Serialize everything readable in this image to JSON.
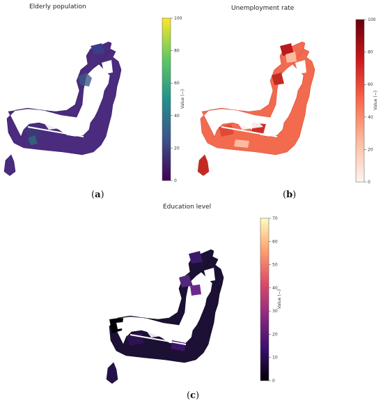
{
  "panels": [
    {
      "id": "a",
      "title": "Elderly population",
      "caption_letter": "a",
      "colorbar": {
        "label": "Value (−)",
        "ticks": [
          "0",
          "20",
          "40",
          "60",
          "80",
          "100"
        ],
        "colormap": "viridis",
        "stops": [
          "#440154",
          "#3b528b",
          "#21918c",
          "#5ec962",
          "#fde725"
        ]
      }
    },
    {
      "id": "b",
      "title": "Unemployment rate",
      "caption_letter": "b",
      "colorbar": {
        "label": "Value (−)",
        "ticks": [
          "0",
          "20",
          "40",
          "60",
          "80",
          "100"
        ],
        "colormap": "reds",
        "stops": [
          "#fff5f0",
          "#fcbba1",
          "#fb6a4a",
          "#cb181d",
          "#67000d"
        ]
      }
    },
    {
      "id": "c",
      "title": "Education level",
      "caption_letter": "c",
      "colorbar": {
        "label": "Value (−)",
        "ticks": [
          "0",
          "10",
          "20",
          "30",
          "40",
          "50",
          "60",
          "70"
        ],
        "colormap": "magma",
        "stops": [
          "#000004",
          "#3b0f70",
          "#8c2981",
          "#de4968",
          "#fe9f6d",
          "#fcfdbf"
        ]
      }
    }
  ]
}
